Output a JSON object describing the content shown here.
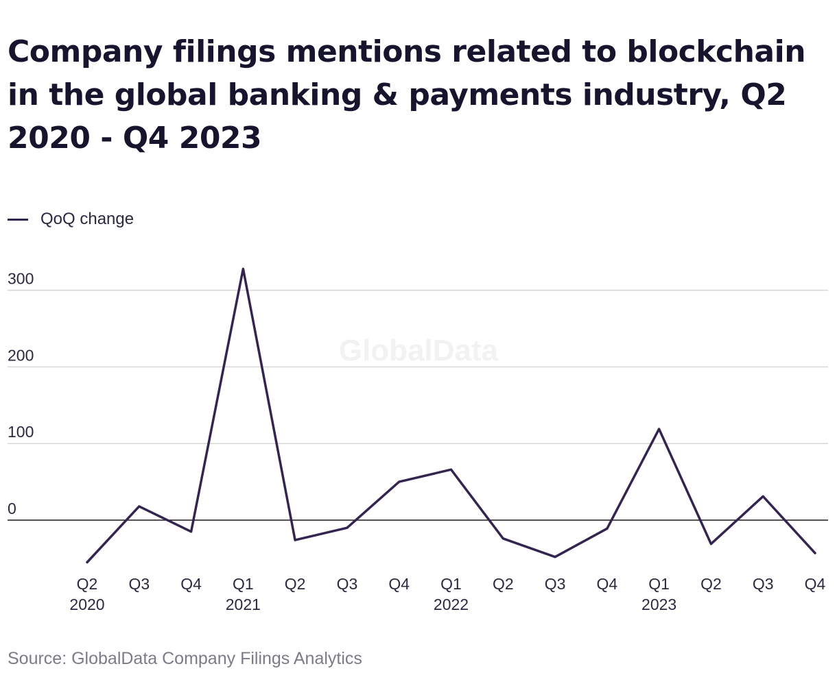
{
  "title": "Company filings mentions related to blockchain in the global banking & payments industry, Q2 2020 - Q4 2023",
  "source": "Source: GlobalData Company Filings Analytics",
  "watermark": "GlobalData",
  "colors": {
    "line": "#33254f",
    "grid": "#d6d6d6",
    "zero_line": "#1a1a1a",
    "text": "#2b2940"
  },
  "chart_data": {
    "type": "line",
    "title": "Company filings mentions related to blockchain in the global banking & payments industry, Q2 2020 - Q4 2023",
    "categories": [
      "Q2 2020",
      "Q3 2020",
      "Q4 2020",
      "Q1 2021",
      "Q2 2021",
      "Q3 2021",
      "Q4 2021",
      "Q1 2022",
      "Q2 2022",
      "Q3 2022",
      "Q4 2022",
      "Q1 2023",
      "Q2 2023",
      "Q3 2023",
      "Q4 2023"
    ],
    "tick_labels": [
      {
        "quarter": "Q2",
        "year": "2020"
      },
      {
        "quarter": "Q3",
        "year": ""
      },
      {
        "quarter": "Q4",
        "year": ""
      },
      {
        "quarter": "Q1",
        "year": "2021"
      },
      {
        "quarter": "Q2",
        "year": ""
      },
      {
        "quarter": "Q3",
        "year": ""
      },
      {
        "quarter": "Q4",
        "year": ""
      },
      {
        "quarter": "Q1",
        "year": "2022"
      },
      {
        "quarter": "Q2",
        "year": ""
      },
      {
        "quarter": "Q3",
        "year": ""
      },
      {
        "quarter": "Q4",
        "year": ""
      },
      {
        "quarter": "Q1",
        "year": "2023"
      },
      {
        "quarter": "Q2",
        "year": ""
      },
      {
        "quarter": "Q3",
        "year": ""
      },
      {
        "quarter": "Q4",
        "year": ""
      }
    ],
    "series": [
      {
        "name": "QoQ change",
        "values": [
          -55,
          18,
          -15,
          328,
          -26,
          -10,
          50,
          66,
          -24,
          -48,
          -11,
          119,
          -31,
          31,
          -43
        ]
      }
    ],
    "y_ticks": [
      0,
      100,
      200,
      300
    ],
    "ylim": [
      -60,
      330
    ],
    "xlabel": "",
    "ylabel": "",
    "grid": true,
    "legend": "top-left"
  }
}
